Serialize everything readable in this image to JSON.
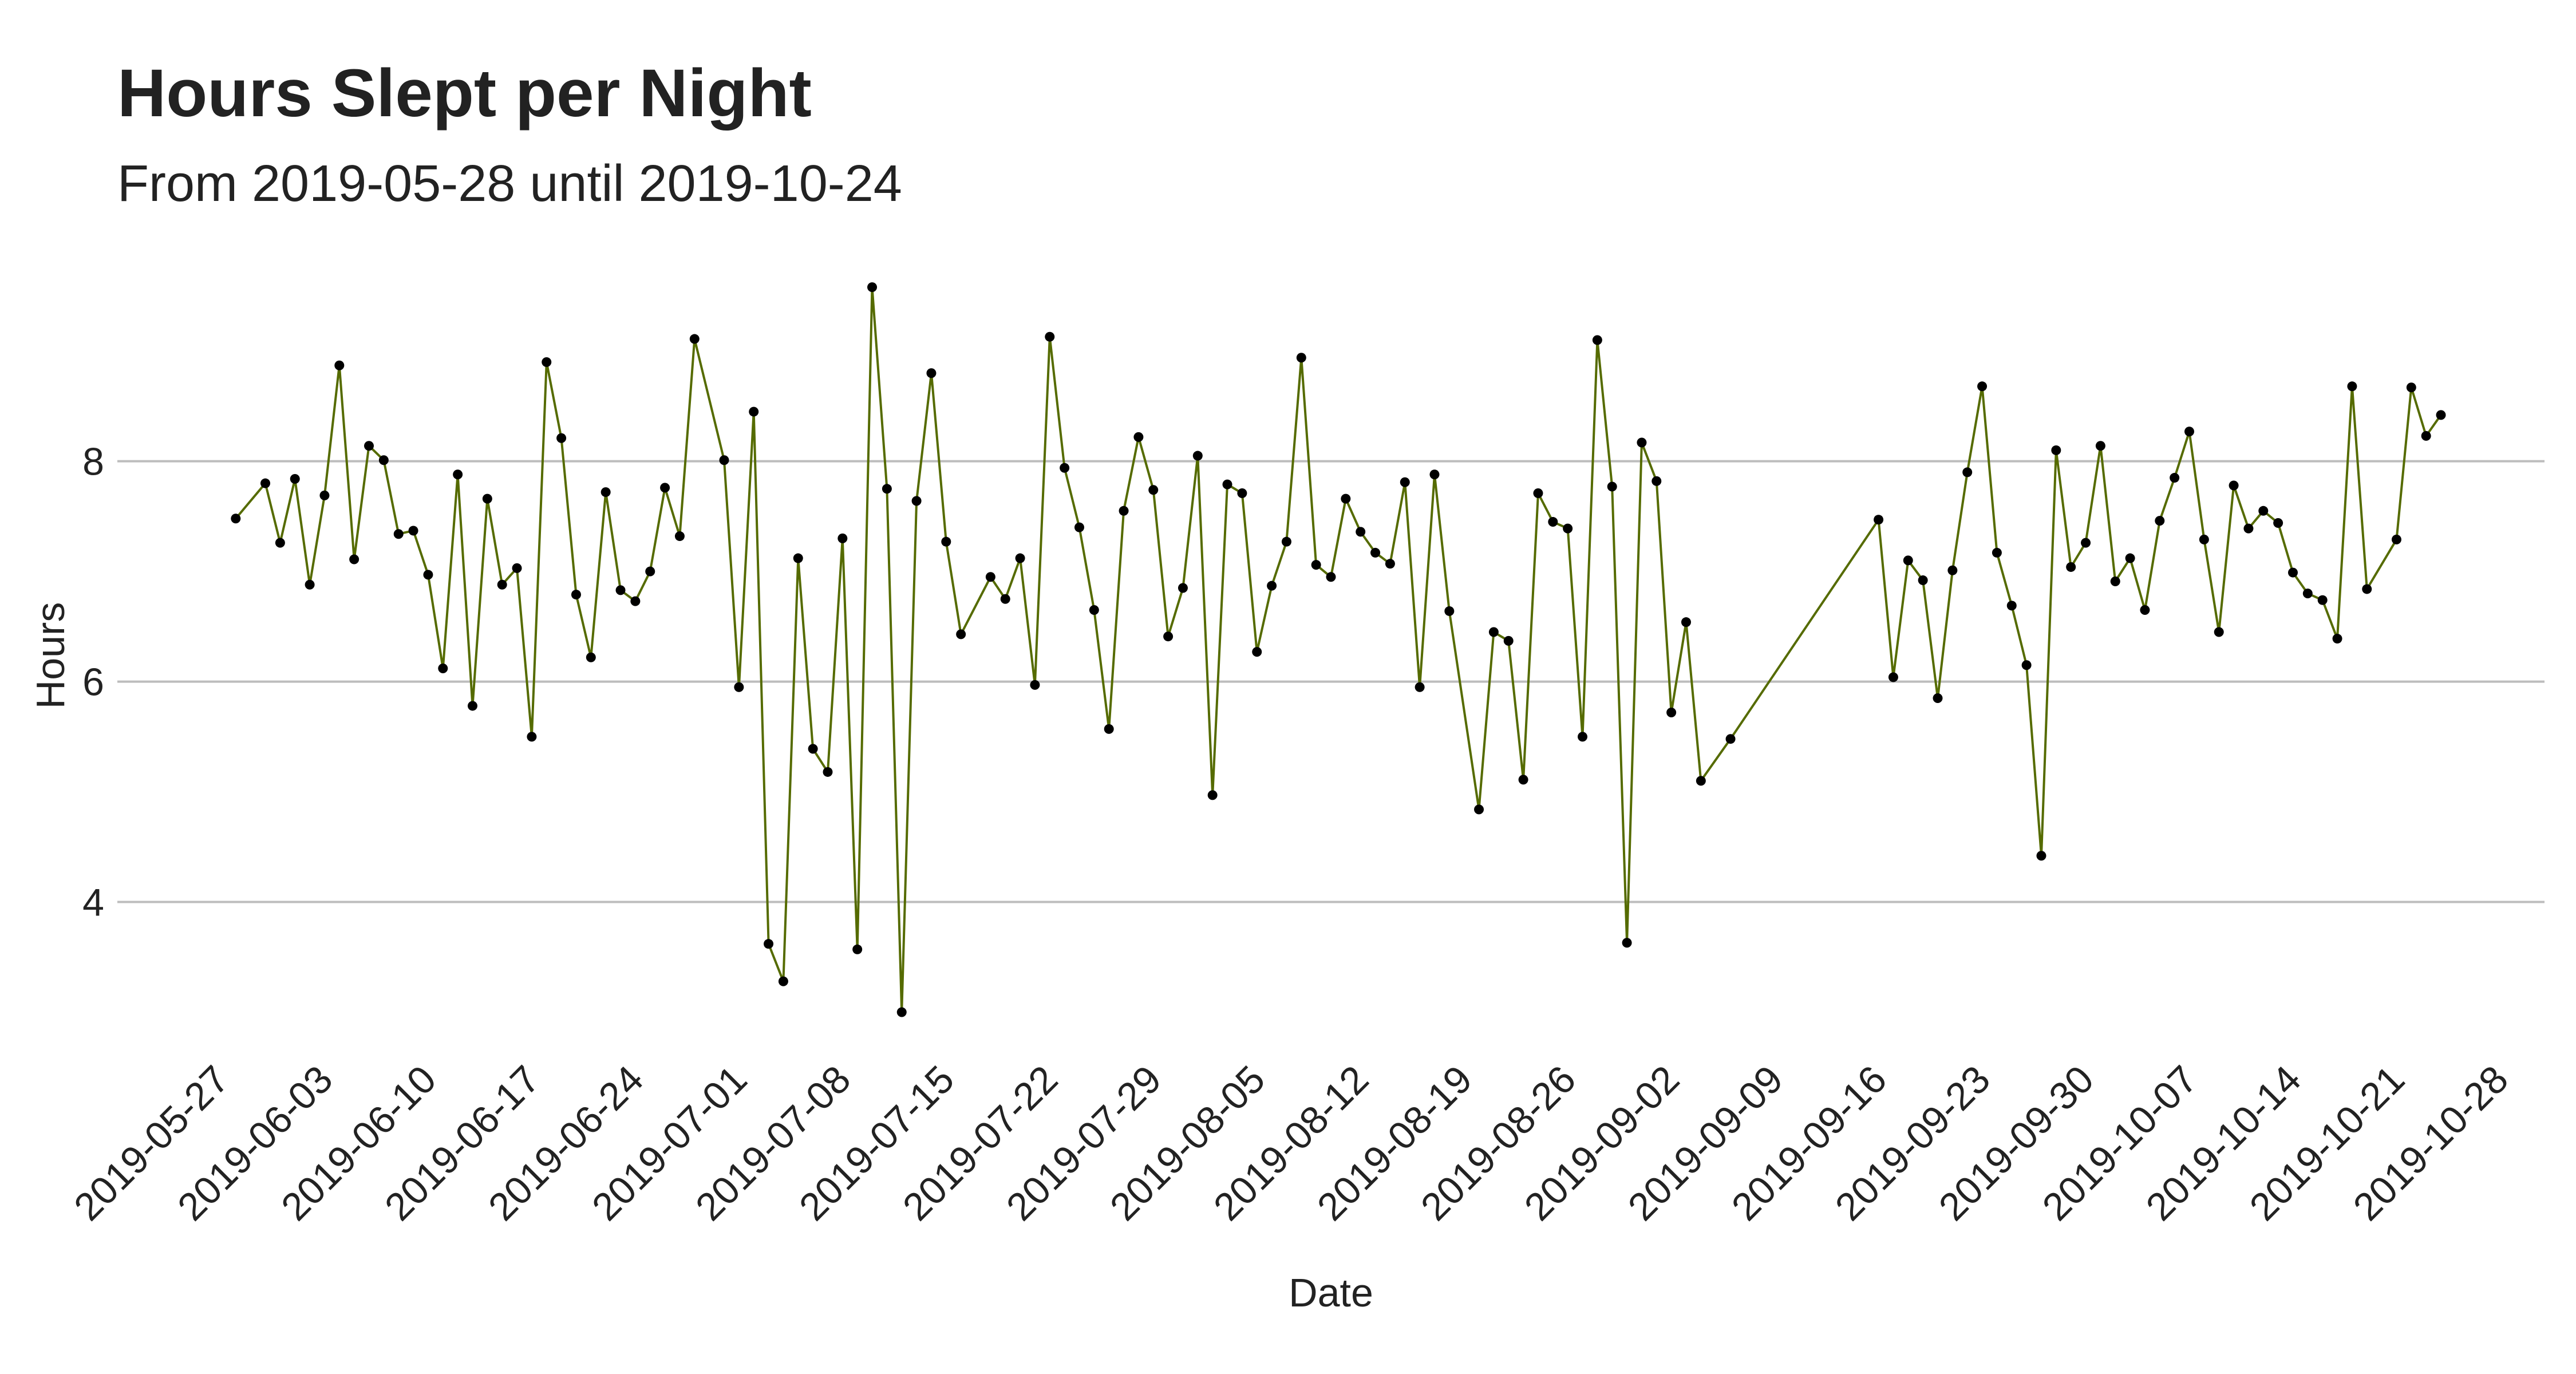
{
  "chart_data": {
    "type": "line",
    "title": "Hours Slept per Night",
    "subtitle": "From 2019-05-28 until 2019-10-24",
    "xlabel": "Date",
    "ylabel": "Hours",
    "x_ticks": [
      "2019-05-27",
      "2019-06-03",
      "2019-06-10",
      "2019-06-17",
      "2019-06-24",
      "2019-07-01",
      "2019-07-08",
      "2019-07-15",
      "2019-07-22",
      "2019-07-29",
      "2019-08-05",
      "2019-08-12",
      "2019-08-19",
      "2019-08-26",
      "2019-09-02",
      "2019-09-09",
      "2019-09-16",
      "2019-09-23",
      "2019-09-30",
      "2019-10-07",
      "2019-10-14",
      "2019-10-21",
      "2019-10-28"
    ],
    "y_ticks": [
      4,
      6,
      8
    ],
    "xlim": [
      "2019-05-20",
      "2019-10-31"
    ],
    "ylim": [
      2.6,
      9.9
    ],
    "grid": "horizontal",
    "colors": {
      "line": "#556b00",
      "point": "#000000",
      "grid": "#bdbdbd"
    },
    "series": [
      {
        "x": [
          "2019-05-28",
          "2019-05-30",
          "2019-05-31",
          "2019-06-01",
          "2019-06-02",
          "2019-06-03",
          "2019-06-04",
          "2019-06-05",
          "2019-06-06",
          "2019-06-07",
          "2019-06-08",
          "2019-06-09",
          "2019-06-10",
          "2019-06-11",
          "2019-06-12",
          "2019-06-13",
          "2019-06-14",
          "2019-06-15",
          "2019-06-16",
          "2019-06-17",
          "2019-06-18",
          "2019-06-19",
          "2019-06-20",
          "2019-06-21",
          "2019-06-22",
          "2019-06-23",
          "2019-06-24",
          "2019-06-25",
          "2019-06-26",
          "2019-06-27",
          "2019-06-28",
          "2019-06-30",
          "2019-07-01",
          "2019-07-02",
          "2019-07-03",
          "2019-07-04",
          "2019-07-05",
          "2019-07-06",
          "2019-07-07",
          "2019-07-08",
          "2019-07-09",
          "2019-07-10",
          "2019-07-11",
          "2019-07-12",
          "2019-07-13",
          "2019-07-14",
          "2019-07-15",
          "2019-07-16",
          "2019-07-18",
          "2019-07-19",
          "2019-07-20",
          "2019-07-21",
          "2019-07-22",
          "2019-07-23",
          "2019-07-24",
          "2019-07-25",
          "2019-07-26",
          "2019-07-27",
          "2019-07-28",
          "2019-07-29",
          "2019-07-30",
          "2019-07-31",
          "2019-08-01",
          "2019-08-02",
          "2019-08-03",
          "2019-08-04",
          "2019-08-05",
          "2019-08-06",
          "2019-08-07",
          "2019-08-08",
          "2019-08-09",
          "2019-08-10",
          "2019-08-11",
          "2019-08-12",
          "2019-08-13",
          "2019-08-14",
          "2019-08-15",
          "2019-08-16",
          "2019-08-17",
          "2019-08-18",
          "2019-08-20",
          "2019-08-21",
          "2019-08-22",
          "2019-08-23",
          "2019-08-24",
          "2019-08-25",
          "2019-08-26",
          "2019-08-27",
          "2019-08-28",
          "2019-08-29",
          "2019-08-30",
          "2019-08-31",
          "2019-09-01",
          "2019-09-02",
          "2019-09-03",
          "2019-09-04",
          "2019-09-06",
          "2019-09-16",
          "2019-09-17",
          "2019-09-18",
          "2019-09-19",
          "2019-09-20",
          "2019-09-21",
          "2019-09-22",
          "2019-09-23",
          "2019-09-24",
          "2019-09-25",
          "2019-09-26",
          "2019-09-27",
          "2019-09-28",
          "2019-09-29",
          "2019-09-30",
          "2019-10-01",
          "2019-10-02",
          "2019-10-03",
          "2019-10-04",
          "2019-10-05",
          "2019-10-06",
          "2019-10-07",
          "2019-10-08",
          "2019-10-09",
          "2019-10-10",
          "2019-10-11",
          "2019-10-12",
          "2019-10-13",
          "2019-10-14",
          "2019-10-15",
          "2019-10-16",
          "2019-10-17",
          "2019-10-18",
          "2019-10-19",
          "2019-10-21",
          "2019-10-22",
          "2019-10-23",
          "2019-10-24"
        ],
        "y": [
          7.48,
          7.8,
          7.26,
          7.84,
          6.88,
          7.69,
          8.87,
          7.11,
          8.14,
          8.01,
          7.34,
          7.37,
          6.97,
          6.12,
          7.88,
          5.78,
          7.66,
          6.88,
          7.03,
          5.5,
          8.9,
          8.21,
          6.79,
          6.22,
          7.72,
          6.83,
          6.73,
          7.0,
          7.76,
          7.32,
          9.11,
          8.01,
          5.95,
          8.45,
          3.62,
          3.28,
          7.12,
          5.39,
          5.18,
          7.3,
          3.57,
          9.58,
          7.75,
          3.0,
          7.64,
          8.8,
          7.27,
          6.43,
          6.95,
          6.75,
          7.12,
          5.97,
          9.13,
          7.94,
          7.4,
          6.65,
          5.57,
          7.55,
          8.22,
          7.74,
          6.41,
          6.85,
          8.05,
          4.97,
          7.79,
          7.71,
          6.27,
          6.87,
          7.27,
          8.94,
          7.06,
          6.95,
          7.66,
          7.36,
          7.17,
          7.07,
          7.81,
          5.95,
          7.88,
          6.64,
          4.84,
          6.45,
          6.37,
          5.11,
          7.71,
          7.45,
          7.39,
          5.5,
          9.1,
          7.77,
          3.63,
          8.17,
          7.82,
          5.72,
          6.54,
          5.1,
          5.48,
          7.47,
          6.04,
          7.1,
          6.92,
          5.85,
          7.01,
          7.9,
          8.68,
          7.17,
          6.69,
          6.15,
          4.42,
          8.1,
          7.04,
          7.26,
          8.14,
          6.91,
          7.12,
          6.65,
          7.46,
          7.85,
          8.27,
          7.29,
          6.45,
          7.78,
          7.39,
          7.55,
          7.44,
          6.99,
          6.8,
          6.74,
          6.39,
          8.68,
          6.84,
          7.29,
          8.67,
          8.23,
          8.42
        ]
      }
    ]
  }
}
